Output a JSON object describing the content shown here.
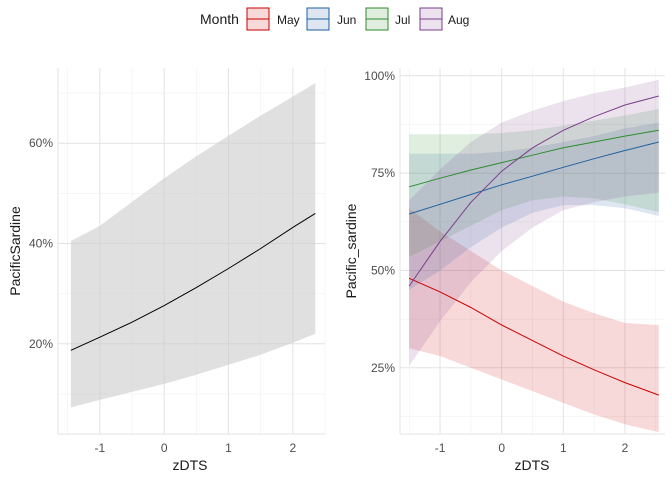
{
  "legend": {
    "title": "Month",
    "entries": [
      {
        "label": "May",
        "color": "#cc0000"
      },
      {
        "label": "Jun",
        "color": "#1f5fa0"
      },
      {
        "label": "Jul",
        "color": "#2e8b2e"
      },
      {
        "label": "Aug",
        "color": "#7b3f8c"
      }
    ]
  },
  "chart_data": [
    {
      "type": "line",
      "xlabel": "zDTS",
      "ylabel": "PacificSardine",
      "xlim": [
        -1.65,
        2.5
      ],
      "ylim": [
        0.02,
        0.75
      ],
      "x_ticks": [
        -1,
        0,
        1,
        2
      ],
      "x_tick_labels": [
        "-1",
        "0",
        "1",
        "2"
      ],
      "y_ticks": [
        0.2,
        0.4,
        0.6
      ],
      "y_tick_labels": [
        "20%",
        "40%",
        "60%"
      ],
      "grid": true,
      "band_color": "#cccccc",
      "series": [
        {
          "color": "#000000",
          "x": [
            -1.45,
            -1,
            -0.5,
            0,
            0.5,
            1,
            1.5,
            2,
            2.35
          ],
          "y": [
            0.187,
            0.213,
            0.243,
            0.276,
            0.312,
            0.35,
            0.39,
            0.432,
            0.46
          ],
          "lower": [
            0.073,
            0.088,
            0.104,
            0.12,
            0.138,
            0.158,
            0.178,
            0.202,
            0.22
          ],
          "upper": [
            0.405,
            0.435,
            0.483,
            0.53,
            0.574,
            0.615,
            0.655,
            0.693,
            0.72
          ]
        }
      ]
    },
    {
      "type": "line",
      "xlabel": "zDTS",
      "ylabel": "Pacific_sardine",
      "xlim": [
        -1.65,
        2.65
      ],
      "ylim": [
        0.08,
        1.02
      ],
      "x_ticks": [
        -1,
        0,
        1,
        2
      ],
      "x_tick_labels": [
        "-1",
        "0",
        "1",
        "2"
      ],
      "y_ticks": [
        0.25,
        0.5,
        0.75,
        1.0
      ],
      "y_tick_labels": [
        "25%",
        "50%",
        "75%",
        "100%"
      ],
      "grid": true,
      "series": [
        {
          "name": "May",
          "color": "#cc0000",
          "x": [
            -1.5,
            -1,
            -0.5,
            0,
            0.5,
            1,
            1.5,
            2,
            2.55
          ],
          "y": [
            0.48,
            0.445,
            0.405,
            0.36,
            0.32,
            0.28,
            0.245,
            0.212,
            0.18
          ],
          "lower": [
            0.3,
            0.28,
            0.25,
            0.22,
            0.19,
            0.16,
            0.13,
            0.105,
            0.085
          ],
          "upper": [
            0.66,
            0.6,
            0.55,
            0.5,
            0.46,
            0.42,
            0.39,
            0.365,
            0.36
          ]
        },
        {
          "name": "Jun",
          "color": "#1f5fa0",
          "x": [
            -1.5,
            -1,
            -0.5,
            0,
            0.5,
            1,
            1.5,
            2,
            2.55
          ],
          "y": [
            0.645,
            0.67,
            0.695,
            0.72,
            0.742,
            0.765,
            0.787,
            0.808,
            0.83
          ],
          "lower": [
            0.45,
            0.5,
            0.56,
            0.61,
            0.648,
            0.668,
            0.668,
            0.66,
            0.64
          ],
          "upper": [
            0.8,
            0.8,
            0.8,
            0.805,
            0.815,
            0.83,
            0.845,
            0.865,
            0.88
          ]
        },
        {
          "name": "Jul",
          "color": "#2e8b2e",
          "x": [
            -1.5,
            -1,
            -0.5,
            0,
            0.5,
            1,
            1.5,
            2,
            2.55
          ],
          "y": [
            0.715,
            0.737,
            0.758,
            0.777,
            0.796,
            0.815,
            0.83,
            0.845,
            0.86
          ],
          "lower": [
            0.535,
            0.575,
            0.615,
            0.655,
            0.68,
            0.69,
            0.685,
            0.67,
            0.65
          ],
          "upper": [
            0.85,
            0.85,
            0.85,
            0.853,
            0.86,
            0.872,
            0.885,
            0.898,
            0.915
          ]
        },
        {
          "name": "Aug",
          "color": "#7b3f8c",
          "x": [
            -1.5,
            -1,
            -0.5,
            0,
            0.5,
            1,
            1.5,
            2,
            2.55
          ],
          "y": [
            0.46,
            0.575,
            0.675,
            0.755,
            0.815,
            0.86,
            0.895,
            0.925,
            0.948
          ],
          "lower": [
            0.255,
            0.37,
            0.47,
            0.55,
            0.61,
            0.655,
            0.675,
            0.69,
            0.7
          ],
          "upper": [
            0.68,
            0.76,
            0.83,
            0.88,
            0.91,
            0.935,
            0.955,
            0.97,
            0.99
          ]
        }
      ]
    }
  ]
}
